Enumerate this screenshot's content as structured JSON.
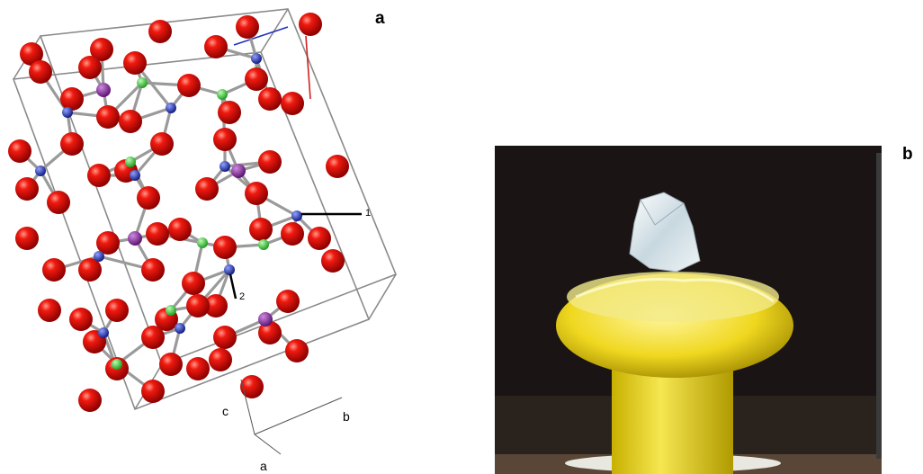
{
  "panels": [
    {
      "label": "a",
      "site_labels": [
        "1",
        "2"
      ],
      "axis_labels": [
        "c",
        "b",
        "a"
      ]
    },
    {
      "label": "b"
    }
  ]
}
